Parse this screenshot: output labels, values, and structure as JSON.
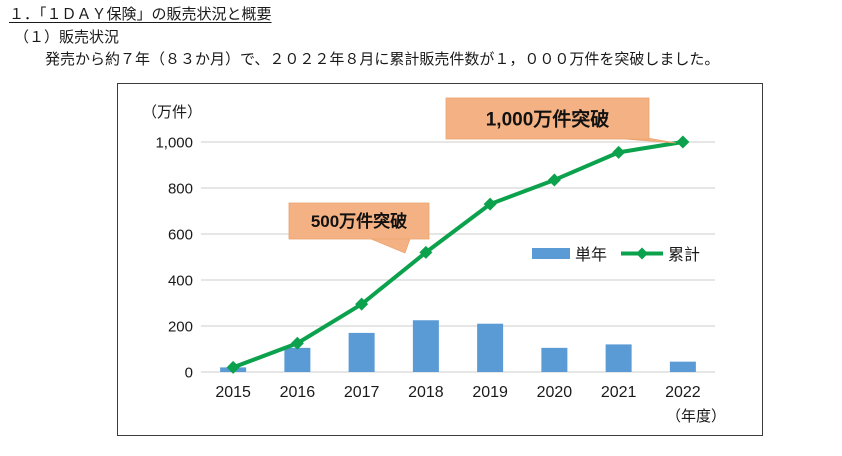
{
  "page": {
    "title": "１．「１ＤＡＹ保険」の販売状況と概要",
    "subtitle": "（１）販売状況",
    "description": "発売から約７年（８３か月）で、２０２２年８月に累計販売件数が１，０００万件を突破しました。"
  },
  "chart_data": {
    "type": "bar+line",
    "title": "",
    "unit_label": "（万件）",
    "axis_suffix_label": "（年度）",
    "categories": [
      "2015",
      "2016",
      "2017",
      "2018",
      "2019",
      "2020",
      "2021",
      "2022"
    ],
    "series": [
      {
        "name": "単年",
        "type": "bar",
        "color": "#5B9BD5",
        "values": [
          20,
          105,
          170,
          225,
          210,
          105,
          120,
          45
        ]
      },
      {
        "name": "累計",
        "type": "line",
        "color": "#0CA24D",
        "marker": "diamond",
        "values": [
          20,
          125,
          295,
          520,
          730,
          835,
          955,
          1000
        ]
      }
    ],
    "ylim": [
      0,
      1000
    ],
    "ytick_interval": 200,
    "yticks": [
      "0",
      "200",
      "400",
      "600",
      "800",
      "1,000"
    ],
    "grid": true,
    "gridline_color": "#D6D6D6",
    "legend_position": "middle-right",
    "annotations": [
      {
        "text": "500万件突破",
        "target_category": "2018",
        "target_series": "累計",
        "target_value": 520
      },
      {
        "text": "1,000万件突破",
        "target_category": "2022",
        "target_series": "累計",
        "target_value": 1000
      }
    ],
    "annotation_fill": "#F4B183",
    "annotation_text_color": "#111111"
  }
}
